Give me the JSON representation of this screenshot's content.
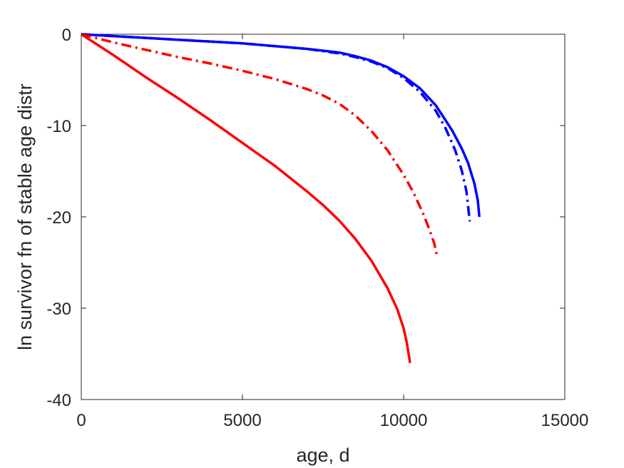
{
  "chart_data": {
    "type": "line",
    "title": "",
    "xlabel": "age, d",
    "ylabel": "ln survivor fn of stable age distr",
    "xlim": [
      0,
      15000
    ],
    "ylim": [
      -40,
      0
    ],
    "xticks": [
      0,
      5000,
      10000,
      15000
    ],
    "yticks": [
      0,
      -10,
      -20,
      -30,
      -40
    ],
    "xtick_labels": [
      "0",
      "5000",
      "10000",
      "15000"
    ],
    "ytick_labels": [
      "0",
      "-10",
      "-20",
      "-30",
      "-40"
    ],
    "grid": false,
    "series": [
      {
        "color": "#0000ff",
        "style": "solid",
        "x": [
          0,
          1000,
          2000,
          3000,
          4000,
          5000,
          6000,
          7000,
          8000,
          8500,
          9000,
          9500,
          10000,
          10500,
          11000,
          11500,
          11800,
          12000,
          12200,
          12300,
          12350
        ],
        "y": [
          0,
          -0.2,
          -0.4,
          -0.6,
          -0.8,
          -1.0,
          -1.3,
          -1.6,
          -2.0,
          -2.4,
          -2.9,
          -3.6,
          -4.6,
          -5.9,
          -7.8,
          -10.5,
          -12.5,
          -14.1,
          -16.4,
          -18.2,
          -20.0
        ]
      },
      {
        "color": "#0000ff",
        "style": "dashdot",
        "x": [
          0,
          1000,
          2000,
          3000,
          4000,
          5000,
          6000,
          7000,
          8000,
          8500,
          9000,
          9500,
          10000,
          10500,
          11000,
          11300,
          11600,
          11800,
          11950,
          12050
        ],
        "y": [
          0,
          -0.2,
          -0.4,
          -0.6,
          -0.8,
          -1.0,
          -1.3,
          -1.6,
          -2.1,
          -2.5,
          -3.0,
          -3.7,
          -4.8,
          -6.3,
          -8.4,
          -10.3,
          -12.7,
          -14.9,
          -17.2,
          -20.5
        ]
      },
      {
        "color": "#ff0000",
        "style": "dashdot",
        "x": [
          0,
          1000,
          2000,
          3000,
          4000,
          5000,
          6000,
          7000,
          7500,
          8000,
          8500,
          9000,
          9500,
          10000,
          10300,
          10600,
          10800,
          10950,
          11050
        ],
        "y": [
          0,
          -0.9,
          -1.7,
          -2.5,
          -3.2,
          -4.0,
          -4.9,
          -6.0,
          -6.7,
          -7.6,
          -8.9,
          -10.6,
          -12.7,
          -15.4,
          -17.3,
          -19.6,
          -21.4,
          -22.9,
          -24.5
        ]
      },
      {
        "color": "#ff0000",
        "style": "solid",
        "x": [
          0,
          1000,
          2000,
          3000,
          4000,
          5000,
          6000,
          7000,
          7500,
          8000,
          8500,
          9000,
          9500,
          9800,
          10000,
          10100,
          10200
        ],
        "y": [
          0,
          -2.3,
          -4.7,
          -7.0,
          -9.4,
          -11.9,
          -14.4,
          -17.2,
          -18.7,
          -20.4,
          -22.4,
          -24.8,
          -27.8,
          -30.1,
          -32.2,
          -33.8,
          -36.0
        ]
      }
    ]
  }
}
